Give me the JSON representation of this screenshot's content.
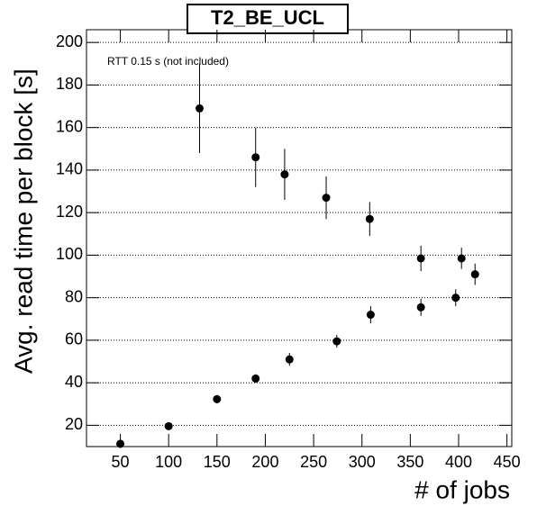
{
  "chart_data": {
    "type": "scatter",
    "title": "T2_BE_UCL",
    "annotation": "RTT 0.15 s (not included)",
    "x_label": "# of jobs",
    "y_label": "Avg. read time per block [s]",
    "color": "#000000",
    "x": [
      50,
      100,
      150,
      190,
      225,
      274,
      309,
      361,
      397,
      132,
      190,
      220,
      263,
      308,
      361,
      403,
      417
    ],
    "values": [
      11.3,
      19.6,
      32.3,
      42,
      51,
      59.5,
      72,
      75.5,
      80,
      169,
      146,
      138,
      127,
      117,
      98.5,
      98.5,
      91
    ],
    "errors": [
      2,
      1.5,
      2,
      2,
      3,
      3,
      4,
      4,
      4,
      21,
      14,
      12,
      10,
      8,
      6,
      5,
      5
    ],
    "xlim": [
      15,
      455
    ],
    "xticks": [
      50,
      100,
      150,
      200,
      250,
      300,
      350,
      400,
      450
    ],
    "ylim": [
      10,
      206
    ],
    "yticks": [
      20,
      40,
      60,
      80,
      100,
      120,
      140,
      160,
      180,
      200
    ],
    "grid": true
  }
}
